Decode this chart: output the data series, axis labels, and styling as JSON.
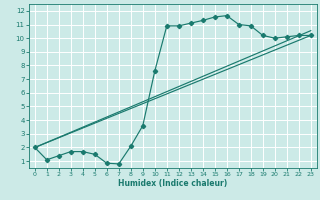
{
  "background_color": "#cceae7",
  "grid_color": "#ffffff",
  "line_color": "#1a7a6e",
  "xlabel": "Humidex (Indice chaleur)",
  "xlim": [
    -0.5,
    23.5
  ],
  "ylim": [
    0.5,
    12.5
  ],
  "xticks": [
    0,
    1,
    2,
    3,
    4,
    5,
    6,
    7,
    8,
    9,
    10,
    11,
    12,
    13,
    14,
    15,
    16,
    17,
    18,
    19,
    20,
    21,
    22,
    23
  ],
  "yticks": [
    1,
    2,
    3,
    4,
    5,
    6,
    7,
    8,
    9,
    10,
    11,
    12
  ],
  "line1_x": [
    0,
    1,
    2,
    3,
    4,
    5,
    6,
    7,
    8,
    9,
    10,
    11,
    12,
    13,
    14,
    15,
    16,
    17,
    18,
    19,
    20,
    21,
    22,
    23
  ],
  "line1_y": [
    2.0,
    1.1,
    1.4,
    1.7,
    1.7,
    1.5,
    0.85,
    0.8,
    2.1,
    3.6,
    7.6,
    10.9,
    10.9,
    11.1,
    11.3,
    11.55,
    11.65,
    11.0,
    10.9,
    10.2,
    10.0,
    10.1,
    10.2,
    10.2
  ],
  "straight_line1": {
    "x": [
      0,
      23
    ],
    "y": [
      2.0,
      10.2
    ]
  },
  "straight_line2": {
    "x": [
      0,
      23
    ],
    "y": [
      2.0,
      10.55
    ]
  }
}
